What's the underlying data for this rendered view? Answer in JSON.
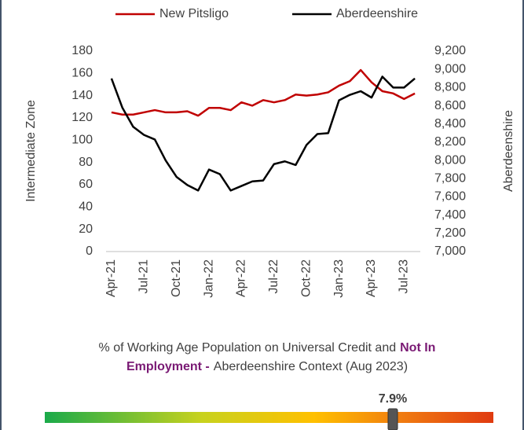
{
  "chart_data": {
    "type": "line",
    "categories": [
      "Apr-21",
      null,
      null,
      "Jul-21",
      null,
      null,
      "Oct-21",
      null,
      null,
      "Jan-22",
      null,
      null,
      "Apr-22",
      null,
      null,
      "Jul-22",
      null,
      null,
      "Oct-22",
      null,
      null,
      "Jan-23",
      null,
      null,
      "Apr-23",
      null,
      null,
      "Jul-23",
      null
    ],
    "series": [
      {
        "name": "New Pitsligo",
        "color": "#c00000",
        "values": [
          125,
          123,
          123,
          125,
          127,
          125,
          125,
          126,
          122,
          129,
          129,
          127,
          134,
          131,
          136,
          134,
          136,
          141,
          140,
          141,
          143,
          149,
          153,
          163,
          152,
          144,
          142,
          137,
          142
        ]
      },
      {
        "name": "Aberdeenshire",
        "color": "#000000",
        "axis": "y2",
        "values": [
          8900,
          8580,
          8370,
          8280,
          8230,
          8000,
          7820,
          7730,
          7670,
          7900,
          7850,
          7670,
          7720,
          7770,
          7780,
          7960,
          7990,
          7950,
          8170,
          8290,
          8300,
          8660,
          8720,
          8760,
          8690,
          8920,
          8800,
          8800,
          8900
        ]
      }
    ],
    "ylabel": "Intermediate Zone",
    "y2label": "Aberdeenshire",
    "ylim": [
      0,
      180
    ],
    "yticks": [
      0,
      20,
      40,
      60,
      80,
      100,
      120,
      140,
      160,
      180
    ],
    "y2lim": [
      7000,
      9200
    ],
    "y2ticks": [
      {
        "value": 7000,
        "label": "7,000"
      },
      {
        "value": 7200,
        "label": "7,200"
      },
      {
        "value": 7400,
        "label": "7,400"
      },
      {
        "value": 7600,
        "label": "7,600"
      },
      {
        "value": 7800,
        "label": "7,800"
      },
      {
        "value": 8000,
        "label": "8,000"
      },
      {
        "value": 8200,
        "label": "8,200"
      },
      {
        "value": 8400,
        "label": "8,400"
      },
      {
        "value": 8600,
        "label": "8,600"
      },
      {
        "value": 8800,
        "label": "8,800"
      },
      {
        "value": 9000,
        "label": "9,000"
      },
      {
        "value": 9200,
        "label": "9,200"
      }
    ],
    "legend": "top"
  },
  "context": {
    "caption": [
      "% of Working Age Population on Universal Credit and",
      "Not In",
      "Employment -",
      "Aberdeenshire Context (Aug 2023)"
    ],
    "value": 7.9,
    "value_label": "7.9%"
  }
}
